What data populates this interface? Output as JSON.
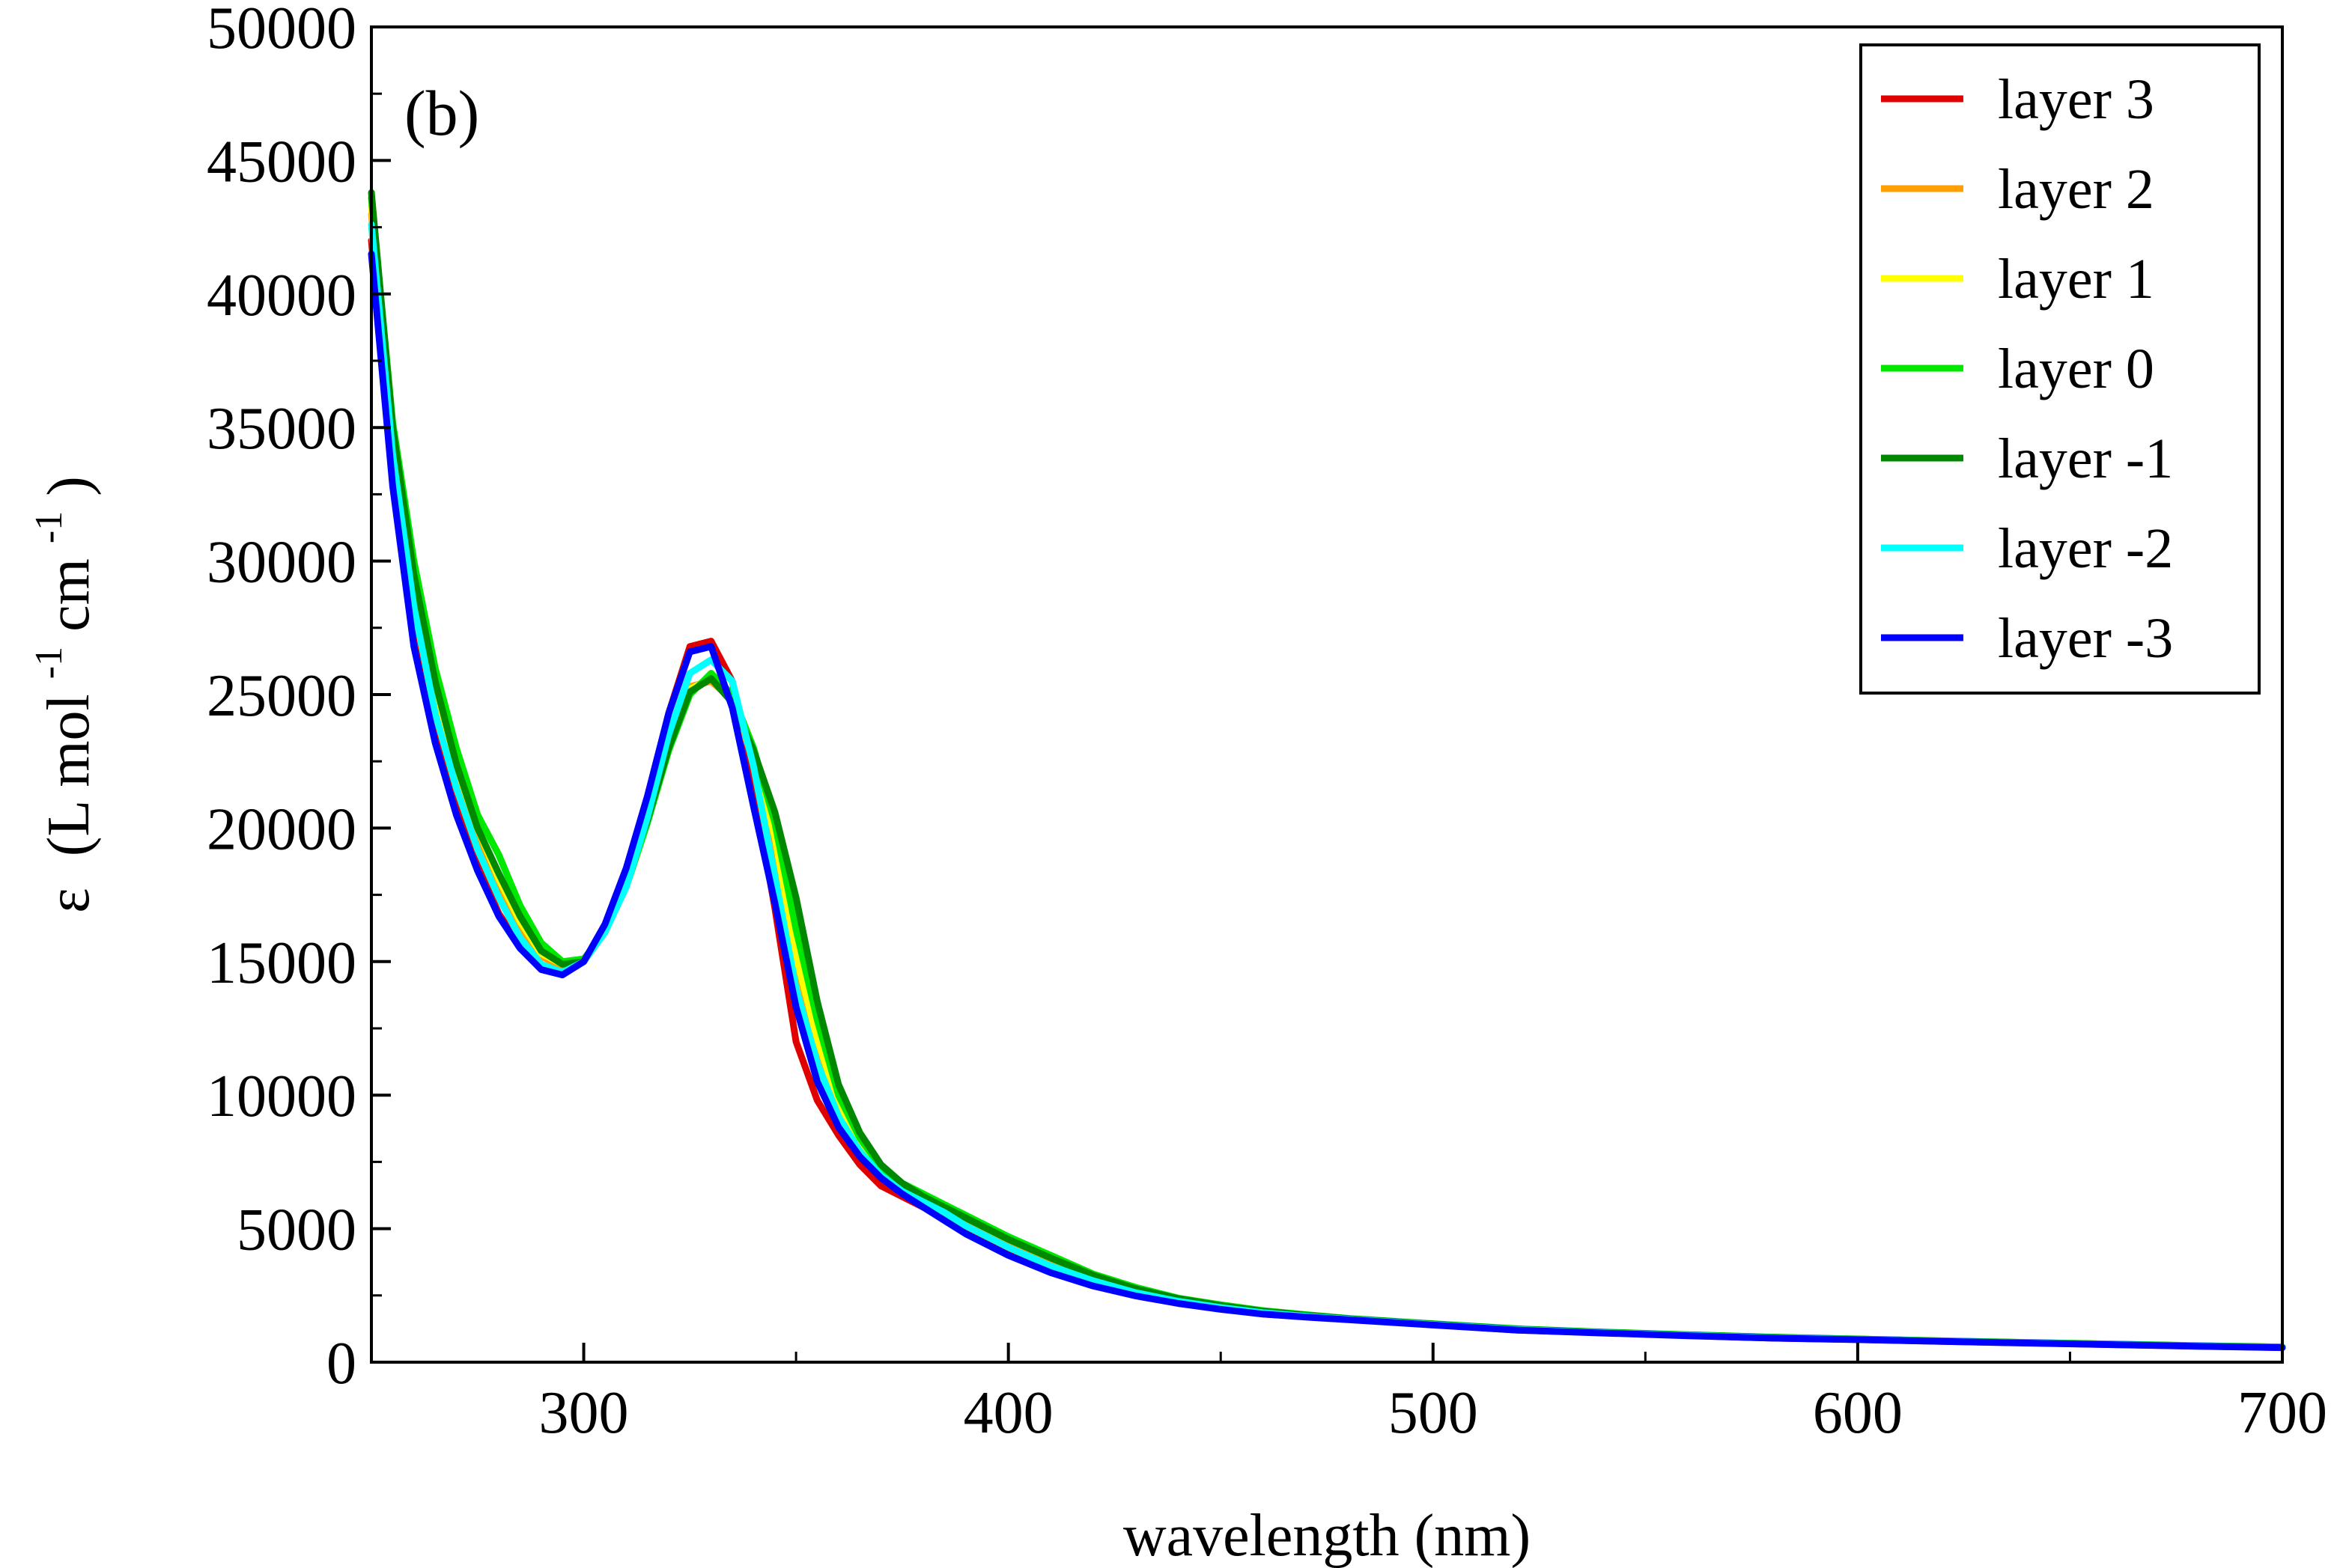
{
  "chart_data": {
    "type": "line",
    "panel_label": "(b)",
    "xlabel": "wavelength (nm)",
    "ylabel": {
      "symbol": "ε",
      "open": "(L mol",
      "sup1": "-1",
      "mid": " cm",
      "sup2": "-1",
      "close": ")"
    },
    "xlim": [
      250,
      700
    ],
    "ylim": [
      0,
      50000
    ],
    "x_ticks": [
      300,
      400,
      500,
      600,
      700
    ],
    "x_tick_labels": [
      "300",
      "400",
      "500",
      "600",
      "700"
    ],
    "y_ticks": [
      0,
      5000,
      10000,
      15000,
      20000,
      25000,
      30000,
      35000,
      40000,
      45000,
      50000
    ],
    "y_tick_labels": [
      "0",
      "5000",
      "10000",
      "15000",
      "20000",
      "25000",
      "30000",
      "35000",
      "40000",
      "45000",
      "50000"
    ],
    "legend_position": "top-right",
    "series": [
      {
        "name": "layer 3",
        "color": "#e00000",
        "x": [
          250,
          255,
          260,
          265,
          270,
          275,
          280,
          285,
          290,
          295,
          300,
          305,
          310,
          315,
          320,
          325,
          330,
          335,
          340,
          345,
          350,
          355,
          360,
          365,
          370,
          375,
          380,
          385,
          390,
          400,
          410,
          420,
          430,
          440,
          450,
          460,
          470,
          480,
          500,
          520,
          540,
          560,
          580,
          600,
          620,
          640,
          660,
          680,
          700
        ],
        "values": [
          42000,
          33000,
          27000,
          23500,
          20800,
          18600,
          16800,
          15600,
          14800,
          14600,
          15000,
          16300,
          18200,
          21000,
          24300,
          26800,
          27000,
          25500,
          21500,
          17000,
          12000,
          9800,
          8500,
          7400,
          6600,
          6200,
          5800,
          5400,
          4900,
          4100,
          3400,
          2900,
          2500,
          2200,
          2000,
          1800,
          1700,
          1600,
          1400,
          1200,
          1100,
          1000,
          900,
          850,
          780,
          720,
          660,
          600,
          550
        ]
      },
      {
        "name": "layer 2",
        "color": "#ffa000",
        "x": [
          250,
          255,
          260,
          265,
          270,
          275,
          280,
          285,
          290,
          295,
          300,
          305,
          310,
          315,
          320,
          325,
          330,
          335,
          340,
          345,
          350,
          355,
          360,
          365,
          370,
          375,
          380,
          385,
          390,
          400,
          410,
          420,
          430,
          440,
          450,
          460,
          470,
          480,
          500,
          520,
          540,
          560,
          580,
          600,
          620,
          640,
          660,
          680,
          700
        ],
        "values": [
          43000,
          34500,
          29000,
          25000,
          22000,
          19800,
          17900,
          16300,
          15200,
          14800,
          15000,
          16200,
          18000,
          20500,
          23300,
          25300,
          25500,
          24800,
          22500,
          19500,
          15000,
          12000,
          9600,
          8200,
          7200,
          6600,
          6100,
          5700,
          5300,
          4500,
          3800,
          3200,
          2700,
          2350,
          2100,
          1900,
          1750,
          1620,
          1420,
          1230,
          1110,
          1010,
          920,
          860,
          790,
          730,
          670,
          610,
          560
        ]
      },
      {
        "name": "layer 1",
        "color": "#ffff00",
        "x": [
          250,
          255,
          260,
          265,
          270,
          275,
          280,
          285,
          290,
          295,
          300,
          305,
          310,
          315,
          320,
          325,
          330,
          335,
          340,
          345,
          350,
          355,
          360,
          365,
          370,
          375,
          380,
          385,
          390,
          400,
          410,
          420,
          430,
          440,
          450,
          460,
          470,
          480,
          500,
          520,
          540,
          560,
          580,
          600,
          620,
          640,
          660,
          680,
          700
        ],
        "values": [
          43300,
          34800,
          29300,
          25300,
          22300,
          20000,
          18100,
          16500,
          15300,
          14900,
          15000,
          16100,
          17900,
          20400,
          23200,
          25200,
          25600,
          24900,
          22700,
          19700,
          15200,
          12100,
          9700,
          8300,
          7300,
          6700,
          6200,
          5800,
          5400,
          4600,
          3900,
          3250,
          2750,
          2380,
          2120,
          1910,
          1760,
          1630,
          1430,
          1240,
          1120,
          1020,
          930,
          865,
          795,
          735,
          675,
          615,
          565
        ]
      },
      {
        "name": "layer 0",
        "color": "#00e800",
        "x": [
          250,
          255,
          260,
          265,
          270,
          275,
          280,
          285,
          290,
          295,
          300,
          305,
          310,
          315,
          320,
          325,
          330,
          335,
          340,
          345,
          350,
          355,
          360,
          365,
          370,
          375,
          380,
          385,
          390,
          400,
          410,
          420,
          430,
          440,
          450,
          460,
          470,
          480,
          500,
          520,
          540,
          560,
          580,
          600,
          620,
          640,
          660,
          680,
          700
        ],
        "values": [
          43600,
          35200,
          30000,
          26000,
          23000,
          20500,
          19000,
          17100,
          15700,
          15000,
          15100,
          16100,
          17800,
          20200,
          22900,
          25000,
          25800,
          25000,
          23000,
          20200,
          16200,
          12800,
          10000,
          8400,
          7300,
          6700,
          6300,
          5900,
          5500,
          4700,
          4000,
          3300,
          2800,
          2400,
          2150,
          1930,
          1780,
          1640,
          1440,
          1250,
          1130,
          1030,
          940,
          870,
          800,
          740,
          680,
          620,
          570
        ]
      },
      {
        "name": "layer -1",
        "color": "#008800",
        "x": [
          250,
          255,
          260,
          265,
          270,
          275,
          280,
          285,
          290,
          295,
          300,
          305,
          310,
          315,
          320,
          325,
          330,
          335,
          340,
          345,
          350,
          355,
          360,
          365,
          370,
          375,
          380,
          385,
          390,
          400,
          410,
          420,
          430,
          440,
          450,
          460,
          470,
          480,
          500,
          520,
          540,
          560,
          580,
          600,
          620,
          640,
          660,
          680,
          700
        ],
        "values": [
          43800,
          35000,
          29500,
          25500,
          22400,
          20000,
          18300,
          16700,
          15400,
          14900,
          15000,
          16200,
          18000,
          20300,
          23000,
          25100,
          25600,
          24700,
          22900,
          20600,
          17400,
          13500,
          10400,
          8600,
          7400,
          6700,
          6200,
          5800,
          5400,
          4600,
          3900,
          3250,
          2750,
          2380,
          2120,
          1910,
          1760,
          1630,
          1430,
          1240,
          1120,
          1020,
          930,
          865,
          795,
          735,
          675,
          615,
          565
        ]
      },
      {
        "name": "layer -2",
        "color": "#00ffff",
        "x": [
          250,
          255,
          260,
          265,
          270,
          275,
          280,
          285,
          290,
          295,
          300,
          305,
          310,
          315,
          320,
          325,
          330,
          335,
          340,
          345,
          350,
          355,
          360,
          365,
          370,
          375,
          380,
          385,
          390,
          400,
          410,
          420,
          430,
          440,
          450,
          460,
          470,
          480,
          500,
          520,
          540,
          560,
          580,
          600,
          620,
          640,
          660,
          680,
          700
        ],
        "values": [
          42600,
          34000,
          28300,
          24300,
          21500,
          19200,
          17400,
          15900,
          14900,
          14600,
          15000,
          16100,
          17800,
          20400,
          23500,
          25800,
          26300,
          25500,
          22300,
          18200,
          14000,
          11200,
          9200,
          7900,
          7000,
          6400,
          6000,
          5600,
          5100,
          4300,
          3600,
          3050,
          2600,
          2280,
          2050,
          1850,
          1720,
          1610,
          1410,
          1220,
          1105,
          1005,
          915,
          855,
          785,
          725,
          665,
          605,
          555
        ]
      },
      {
        "name": "layer -3",
        "color": "#0000ff",
        "x": [
          250,
          255,
          260,
          265,
          270,
          275,
          280,
          285,
          290,
          295,
          300,
          305,
          310,
          315,
          320,
          325,
          330,
          335,
          340,
          345,
          350,
          355,
          360,
          365,
          370,
          375,
          380,
          385,
          390,
          400,
          410,
          420,
          430,
          440,
          450,
          460,
          470,
          480,
          500,
          520,
          540,
          560,
          580,
          600,
          620,
          640,
          660,
          680,
          700
        ],
        "values": [
          41500,
          32800,
          26800,
          23200,
          20500,
          18400,
          16700,
          15500,
          14700,
          14500,
          15000,
          16400,
          18500,
          21200,
          24300,
          26600,
          26800,
          24500,
          20800,
          17200,
          13300,
          10500,
          8800,
          7700,
          6900,
          6300,
          5800,
          5300,
          4800,
          4000,
          3350,
          2850,
          2480,
          2200,
          1980,
          1800,
          1690,
          1590,
          1390,
          1200,
          1090,
          990,
          900,
          845,
          775,
          715,
          655,
          595,
          545
        ]
      }
    ]
  }
}
